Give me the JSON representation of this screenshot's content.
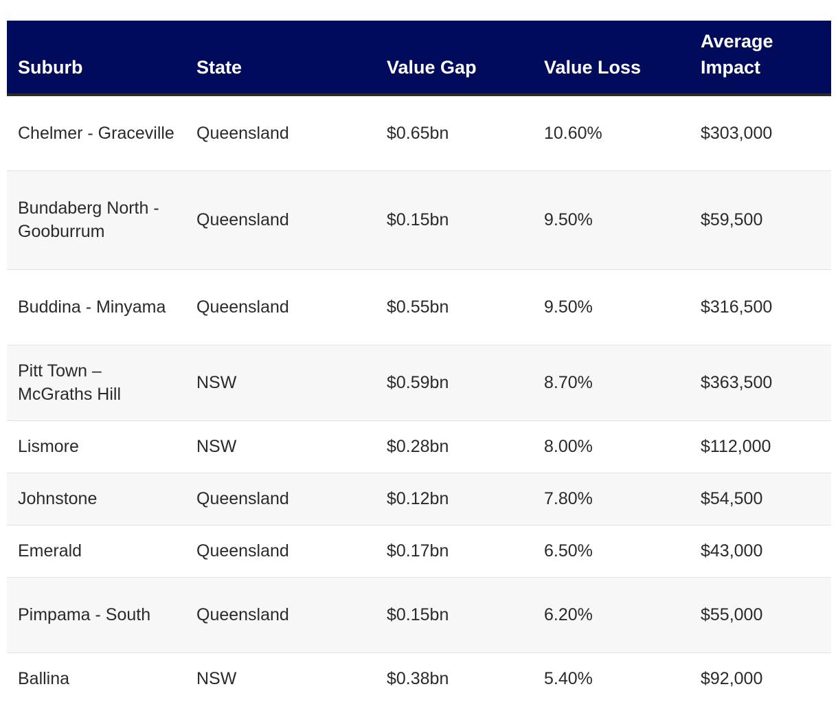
{
  "table": {
    "headers": [
      "Suburb",
      "State",
      "Value Gap",
      "Value Loss",
      "Average Impact"
    ],
    "rows": [
      {
        "suburb": "Chelmer - Graceville",
        "state": "Queensland",
        "value_gap": "$0.65bn",
        "value_loss": "10.60%",
        "average_impact": "$303,000"
      },
      {
        "suburb": "Bundaberg North - Gooburrum",
        "state": "Queensland",
        "value_gap": "$0.15bn",
        "value_loss": "9.50%",
        "average_impact": "$59,500"
      },
      {
        "suburb": "Buddina - Minyama",
        "state": "Queensland",
        "value_gap": "$0.55bn",
        "value_loss": "9.50%",
        "average_impact": "$316,500"
      },
      {
        "suburb": "Pitt Town – McGraths Hill",
        "state": "NSW",
        "value_gap": "$0.59bn",
        "value_loss": "8.70%",
        "average_impact": "$363,500"
      },
      {
        "suburb": "Lismore",
        "state": "NSW",
        "value_gap": "$0.28bn",
        "value_loss": "8.00%",
        "average_impact": "$112,000"
      },
      {
        "suburb": "Johnstone",
        "state": "Queensland",
        "value_gap": "$0.12bn",
        "value_loss": "7.80%",
        "average_impact": "$54,500"
      },
      {
        "suburb": "Emerald",
        "state": "Queensland",
        "value_gap": "$0.17bn",
        "value_loss": "6.50%",
        "average_impact": "$43,000"
      },
      {
        "suburb": "Pimpama - South",
        "state": "Queensland",
        "value_gap": "$0.15bn",
        "value_loss": "6.20%",
        "average_impact": "$55,000"
      },
      {
        "suburb": "Ballina",
        "state": "NSW",
        "value_gap": "$0.38bn",
        "value_loss": "5.40%",
        "average_impact": "$92,000"
      }
    ]
  }
}
